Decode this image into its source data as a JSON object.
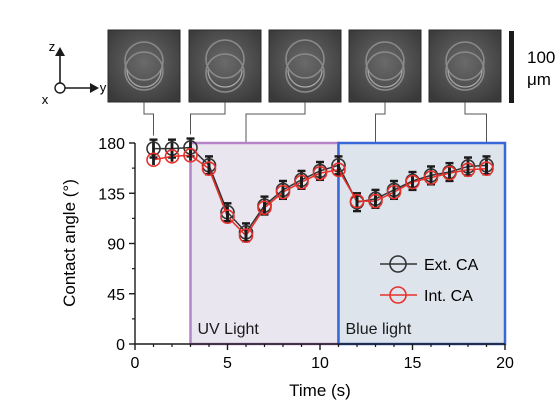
{
  "axes_indicator": {
    "z": "z",
    "y": "y",
    "x": "x"
  },
  "scale_bar": {
    "value": "100",
    "unit": "μm"
  },
  "inset_images": {
    "count": 5,
    "x_positions": [
      1,
      3,
      6,
      13,
      19
    ]
  },
  "colors": {
    "uv_region_fill": "#eae6ef",
    "uv_region_border": "#b583c8",
    "blue_region_fill": "#dde4ec",
    "blue_region_border": "#3868d8",
    "ext_series": "#333333",
    "int_series": "#e8312b",
    "thumb_bg": "#5a5a5a"
  },
  "chart_data": {
    "type": "line",
    "xlabel": "Time (s)",
    "ylabel": "Contact angle (°)",
    "xlim": [
      0,
      20
    ],
    "ylim": [
      0,
      180
    ],
    "xticks": [
      0,
      5,
      10,
      15,
      20
    ],
    "yticks": [
      0,
      45,
      90,
      135,
      180
    ],
    "regions": [
      {
        "label": "UV Light",
        "x_start": 3,
        "x_end": 11
      },
      {
        "label": "Blue light",
        "x_start": 11,
        "x_end": 20
      }
    ],
    "x": [
      1,
      2,
      3,
      4,
      5,
      6,
      7,
      8,
      9,
      10,
      11,
      12,
      13,
      14,
      15,
      16,
      17,
      18,
      19
    ],
    "series": [
      {
        "name": "Ext. CA",
        "values": [
          175,
          175,
          176,
          160,
          118,
          100,
          124,
          138,
          147,
          155,
          160,
          127,
          130,
          138,
          146,
          151,
          154,
          159,
          160
        ]
      },
      {
        "name": "Int. CA",
        "values": [
          165,
          168,
          169,
          157,
          114,
          97,
          122,
          136,
          145,
          153,
          156,
          128,
          128,
          136,
          145,
          149,
          153,
          156,
          157
        ]
      }
    ],
    "error": 8,
    "legend_position": "bottom-right"
  }
}
